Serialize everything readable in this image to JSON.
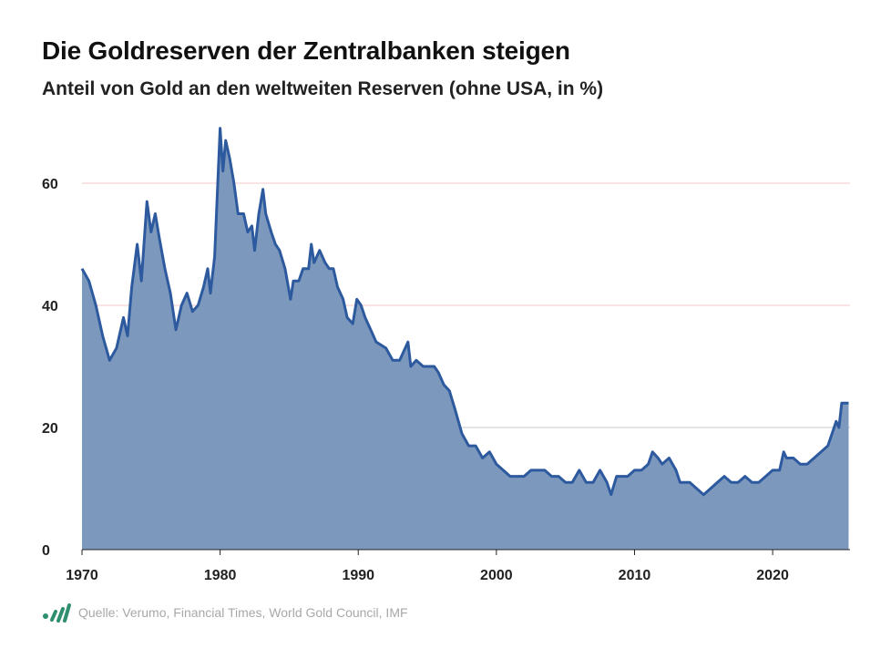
{
  "header": {
    "title": "Die Goldreserven der Zentralbanken steigen",
    "subtitle": "Anteil von Gold an den weltweiten Reserven (ohne USA, in %)"
  },
  "footer": {
    "source": "Quelle: Verumo, Financial Times, World Gold Council, IMF",
    "logo_icon": "verumo-bars-logo",
    "logo_color": "#2e8f6e"
  },
  "chart_data": {
    "type": "area",
    "title": "Die Goldreserven der Zentralbanken steigen",
    "subtitle": "Anteil von Gold an den weltweiten Reserven (ohne USA, in %)",
    "xlabel": "",
    "ylabel": "",
    "xlim": [
      1970,
      2025.6
    ],
    "ylim": [
      0,
      70
    ],
    "x_ticks": [
      "1970",
      "1980",
      "1990",
      "2000",
      "2010",
      "2020"
    ],
    "y_ticks": [
      "0",
      "20",
      "40",
      "60"
    ],
    "grid": true,
    "legend": "none",
    "colors": {
      "line": "#2d5a9e",
      "fill": "#7d98bd",
      "grid_60_40": "#f0c8c8",
      "grid_20": "#c8c8c8"
    },
    "x": [
      1970,
      1970.5,
      1971,
      1971.5,
      1972,
      1972.5,
      1973,
      1973.3,
      1973.6,
      1974,
      1974.3,
      1974.7,
      1975,
      1975.3,
      1975.6,
      1976,
      1976.4,
      1976.8,
      1977.2,
      1977.6,
      1978,
      1978.4,
      1978.8,
      1979.1,
      1979.3,
      1979.6,
      1980,
      1980.2,
      1980.4,
      1980.7,
      1981,
      1981.3,
      1981.7,
      1982,
      1982.3,
      1982.5,
      1982.8,
      1983.1,
      1983.3,
      1983.7,
      1984,
      1984.3,
      1984.7,
      1985.1,
      1985.3,
      1985.7,
      1986,
      1986.4,
      1986.6,
      1986.8,
      1987.2,
      1987.6,
      1987.9,
      1988.2,
      1988.5,
      1988.9,
      1989.2,
      1989.6,
      1989.9,
      1990.2,
      1990.5,
      1990.9,
      1991.3,
      1992,
      1992.5,
      1993,
      1993.6,
      1993.8,
      1994.2,
      1994.7,
      1995.5,
      1995.8,
      1996.2,
      1996.6,
      1997,
      1997.5,
      1998,
      1998.5,
      1999,
      1999.5,
      2000,
      2001,
      2002,
      2002.5,
      2003,
      2003.5,
      2004,
      2004.5,
      2005,
      2005.5,
      2006,
      2006.5,
      2007,
      2007.5,
      2008,
      2008.3,
      2008.7,
      2009,
      2009.5,
      2010,
      2010.5,
      2011,
      2011.3,
      2011.7,
      2012,
      2012.5,
      2013,
      2013.3,
      2014,
      2014.5,
      2015,
      2015.5,
      2016,
      2016.5,
      2017,
      2017.5,
      2018,
      2018.5,
      2019,
      2019.5,
      2020,
      2020.5,
      2020.8,
      2021,
      2021.5,
      2022,
      2022.5,
      2023,
      2023.5,
      2024,
      2024.3,
      2024.6,
      2024.8,
      2025,
      2025.5
    ],
    "values": [
      46,
      44,
      40,
      35,
      31,
      33,
      38,
      35,
      43,
      50,
      44,
      57,
      52,
      55,
      51,
      46,
      42,
      36,
      40,
      42,
      39,
      40,
      43,
      46,
      42,
      48,
      69,
      62,
      67,
      64,
      60,
      55,
      55,
      52,
      53,
      49,
      55,
      59,
      55,
      52,
      50,
      49,
      46,
      41,
      44,
      44,
      46,
      46,
      50,
      47,
      49,
      47,
      46,
      46,
      43,
      41,
      38,
      37,
      41,
      40,
      38,
      36,
      34,
      33,
      31,
      31,
      34,
      30,
      31,
      30,
      30,
      29,
      27,
      26,
      23,
      19,
      17,
      17,
      15,
      16,
      14,
      12,
      12,
      13,
      13,
      13,
      12,
      12,
      11,
      11,
      13,
      11,
      11,
      13,
      11,
      9,
      12,
      12,
      12,
      13,
      13,
      14,
      16,
      15,
      14,
      15,
      13,
      11,
      11,
      10,
      9,
      10,
      11,
      12,
      11,
      11,
      12,
      11,
      11,
      12,
      13,
      13,
      16,
      15,
      15,
      14,
      14,
      15,
      16,
      17,
      19,
      21,
      20,
      24,
      24
    ]
  }
}
